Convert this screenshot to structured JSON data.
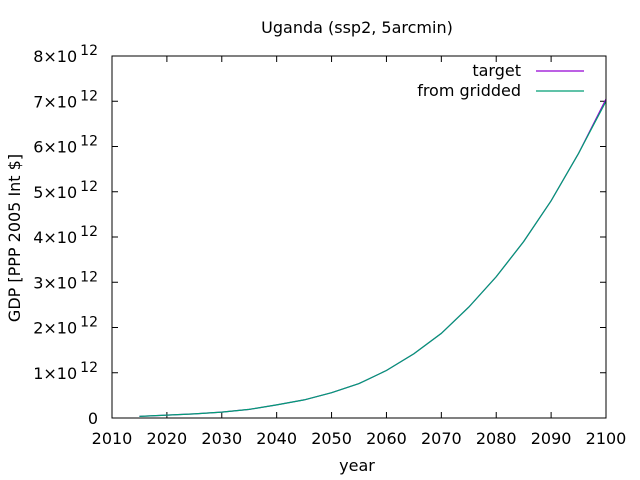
{
  "chart_data": {
    "type": "line",
    "title": "Uganda (ssp2, 5arcmin)",
    "xlabel": "year",
    "ylabel": "GDP [PPP 2005 Int $]",
    "xlim": [
      2010,
      2100
    ],
    "ylim": [
      0,
      8000000000000.0
    ],
    "x_ticks": [
      2010,
      2020,
      2030,
      2040,
      2050,
      2060,
      2070,
      2080,
      2090,
      2100
    ],
    "y_ticks": [
      {
        "value": 0,
        "mantissa": "0",
        "exponent": ""
      },
      {
        "value": 1000000000000.0,
        "mantissa": "1×10",
        "exponent": "12"
      },
      {
        "value": 2000000000000.0,
        "mantissa": "2×10",
        "exponent": "12"
      },
      {
        "value": 3000000000000.0,
        "mantissa": "3×10",
        "exponent": "12"
      },
      {
        "value": 4000000000000.0,
        "mantissa": "4×10",
        "exponent": "12"
      },
      {
        "value": 5000000000000.0,
        "mantissa": "5×10",
        "exponent": "12"
      },
      {
        "value": 6000000000000.0,
        "mantissa": "6×10",
        "exponent": "12"
      },
      {
        "value": 7000000000000.0,
        "mantissa": "7×10",
        "exponent": "12"
      },
      {
        "value": 8000000000000.0,
        "mantissa": "8×10",
        "exponent": "12"
      }
    ],
    "legend_position": "top-right",
    "grid": false,
    "x": [
      2015,
      2020,
      2025,
      2030,
      2035,
      2040,
      2045,
      2050,
      2055,
      2060,
      2065,
      2070,
      2075,
      2080,
      2085,
      2090,
      2095,
      2100
    ],
    "series": [
      {
        "name": "target",
        "color": "#9400d3",
        "values": [
          35000000000.0,
          65000000000.0,
          90000000000.0,
          130000000000.0,
          190000000000.0,
          290000000000.0,
          400000000000.0,
          560000000000.0,
          760000000000.0,
          1050000000000.0,
          1420000000000.0,
          1870000000000.0,
          2450000000000.0,
          3120000000000.0,
          3900000000000.0,
          4800000000000.0,
          5850000000000.0,
          7050000000000.0
        ]
      },
      {
        "name": "from gridded",
        "color": "#009e73",
        "values": [
          35000000000.0,
          65000000000.0,
          90000000000.0,
          130000000000.0,
          190000000000.0,
          290000000000.0,
          400000000000.0,
          560000000000.0,
          760000000000.0,
          1050000000000.0,
          1420000000000.0,
          1870000000000.0,
          2450000000000.0,
          3120000000000.0,
          3900000000000.0,
          4800000000000.0,
          5850000000000.0,
          7000000000000.0
        ]
      }
    ]
  }
}
